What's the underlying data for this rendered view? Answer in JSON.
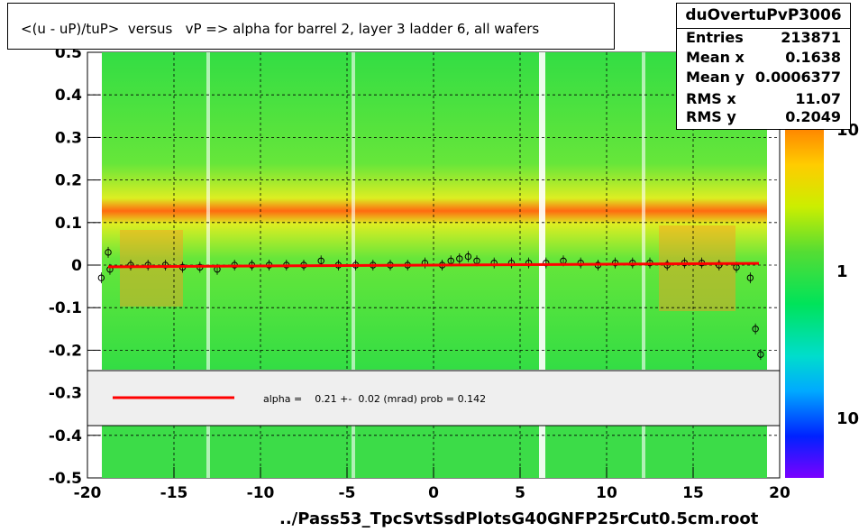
{
  "title": "<(u - uP)/tuP>  versus   vP => alpha for barrel 2, layer 3 ladder 6, all wafers",
  "stats": {
    "name": "duOvertuPvP3006",
    "rows": [
      {
        "key": "Entries",
        "value": "213871"
      },
      {
        "key": "Mean x",
        "value": "0.1638"
      },
      {
        "key": "Mean y",
        "value": "0.0006377"
      },
      {
        "key": "RMS x",
        "value": "11.07"
      },
      {
        "key": "RMS y",
        "value": "0.2049"
      }
    ]
  },
  "fit_label": "alpha =    0.21 +-  0.02 (mrad) prob = 0.142",
  "footer": "../Pass53_TpcSvtSsdPlotsG40GNFP25rCut0.5cm.root",
  "colors": {
    "fit_line": "#ff0000",
    "legend_bg": "#efefef"
  },
  "chart_data": {
    "type": "heatmap",
    "xlim": [
      -20,
      20
    ],
    "ylim": [
      -0.5,
      0.5
    ],
    "x_ticks": [
      "-20",
      "-15",
      "-10",
      "-5",
      "0",
      "5",
      "10",
      "15",
      "20"
    ],
    "y_ticks": [
      "-0.5",
      "-0.4",
      "-0.3",
      "-0.2",
      "-0.1",
      "0",
      "0.1",
      "0.2",
      "0.3",
      "0.4",
      "0.5"
    ],
    "colorbar_ticks": [
      "10",
      "1",
      "10"
    ],
    "grid": true,
    "profile_points": [
      [
        -19.2,
        -0.03
      ],
      [
        -18.8,
        0.03
      ],
      [
        -18.7,
        -0.01
      ],
      [
        -17.5,
        0.0
      ],
      [
        -16.5,
        0.0
      ],
      [
        -15.5,
        0.0
      ],
      [
        -14.5,
        -0.005
      ],
      [
        -13.5,
        -0.005
      ],
      [
        -12.5,
        -0.01
      ],
      [
        -11.5,
        0.0
      ],
      [
        -10.5,
        0.0
      ],
      [
        -9.5,
        0.0
      ],
      [
        -8.5,
        0.0
      ],
      [
        -7.5,
        0.0
      ],
      [
        -6.5,
        0.01
      ],
      [
        -5.5,
        0.0
      ],
      [
        -4.5,
        0.0
      ],
      [
        -3.5,
        0.0
      ],
      [
        -2.5,
        0.0
      ],
      [
        -1.5,
        0.0
      ],
      [
        -0.5,
        0.005
      ],
      [
        0.5,
        0.0
      ],
      [
        1.0,
        0.01
      ],
      [
        1.5,
        0.015
      ],
      [
        2.0,
        0.02
      ],
      [
        2.5,
        0.01
      ],
      [
        3.5,
        0.005
      ],
      [
        4.5,
        0.005
      ],
      [
        5.5,
        0.005
      ],
      [
        6.5,
        0.005
      ],
      [
        7.5,
        0.01
      ],
      [
        8.5,
        0.005
      ],
      [
        9.5,
        0.0
      ],
      [
        10.5,
        0.005
      ],
      [
        11.5,
        0.005
      ],
      [
        12.5,
        0.005
      ],
      [
        13.5,
        0.0
      ],
      [
        14.5,
        0.005
      ],
      [
        15.5,
        0.005
      ],
      [
        16.5,
        0.0
      ],
      [
        17.5,
        -0.005
      ],
      [
        18.3,
        -0.03
      ],
      [
        18.6,
        -0.15
      ],
      [
        18.9,
        -0.21
      ]
    ],
    "fit_line": {
      "slope_mrad": 0.21,
      "error_mrad": 0.02,
      "prob": 0.142
    }
  }
}
